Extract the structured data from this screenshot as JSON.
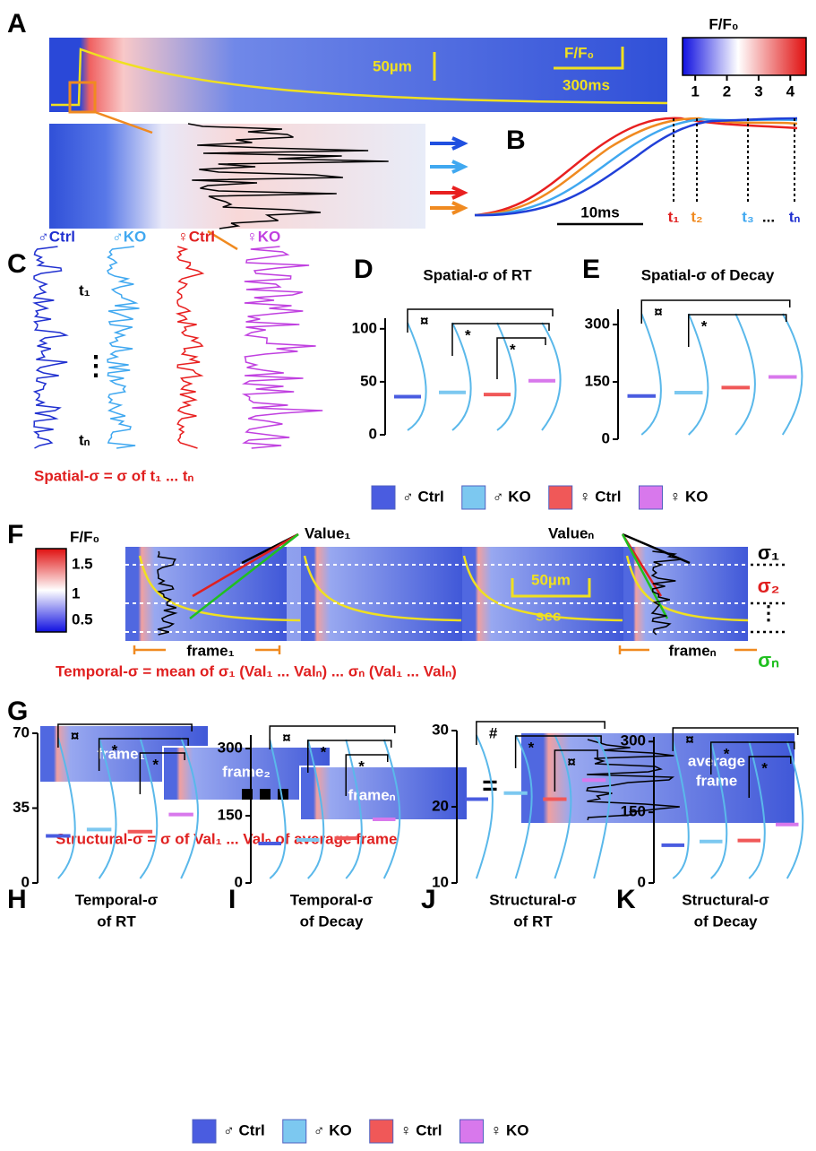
{
  "panel_labels": [
    "A",
    "B",
    "C",
    "D",
    "E",
    "F",
    "G",
    "H",
    "I",
    "J",
    "K"
  ],
  "panel_a": {
    "colorbar_title": "F/F₀",
    "colorbar_ticks": [
      1,
      2,
      3,
      4
    ],
    "scale_length": "50µm",
    "scale_amplitude": "F/F₀",
    "scale_time": "300ms"
  },
  "panel_b": {
    "scale_time": "10ms",
    "time_labels": [
      "t₁",
      "t₂",
      "t₃",
      "...",
      "tₙ"
    ]
  },
  "panel_c": {
    "trace_labels": [
      "♂Ctrl",
      "♂KO",
      "♀Ctrl",
      "♀KO"
    ],
    "first_label": "t₁",
    "ellipsis": "⋮",
    "last_label": "tₙ",
    "formula": "Spatial-σ = σ of t₁ ... tₙ"
  },
  "panel_f": {
    "colorbar_title": "F/F₀",
    "colorbar_ticks": [
      "1.5",
      "1",
      "0.5"
    ],
    "value_first": "Value₁",
    "value_last": "Valueₙ",
    "scale_length": "50µm",
    "scale_time": "sec",
    "sigma_labels": [
      "σ₁",
      "σ₂",
      "⋮",
      "σₙ"
    ],
    "frame_first": "frame₁",
    "frame_last": "frameₙ",
    "formula": "Temporal-σ = mean of σ₁ (Val₁ ... Valₙ) ... σₙ (Val₁ ... Valₙ)"
  },
  "panel_g": {
    "frames": [
      "frame₁",
      "frame₂",
      "frameₙ"
    ],
    "equals": "=",
    "average": [
      "average",
      "frame"
    ],
    "formula": "Structural-σ =  σ of Val₁ ... Valₙ of average frame"
  },
  "legends": [
    [
      {
        "name": "♂ Ctrl",
        "color": "#4a5ce0"
      },
      {
        "name": "♂ KO",
        "color": "#7cc8f0"
      },
      {
        "name": "♀ Ctrl",
        "color": "#f05858"
      },
      {
        "name": "♀ KO",
        "color": "#d878ec"
      }
    ],
    [
      {
        "name": "♂ Ctrl",
        "color": "#4a5ce0"
      },
      {
        "name": "♂ KO",
        "color": "#7cc8f0"
      },
      {
        "name": "♀ Ctrl",
        "color": "#f05858"
      },
      {
        "name": "♀ KO",
        "color": "#d878ec"
      }
    ]
  ],
  "chart_data": [
    {
      "type": "mean",
      "title": [
        "Spatial-σ of RT"
      ],
      "values": [
        36,
        40,
        38,
        51
      ],
      "ylim": [
        0,
        110
      ],
      "yticks": [
        0,
        50,
        100
      ],
      "brackets": [
        "¤",
        "*",
        "*"
      ]
    },
    {
      "type": "mean",
      "title": [
        "Spatial-σ of Decay"
      ],
      "values": [
        113,
        122,
        135,
        163
      ],
      "ylim": [
        0,
        340
      ],
      "yticks": [
        0,
        150,
        300
      ],
      "brackets": [
        "¤",
        "*"
      ]
    },
    {
      "type": "mean",
      "title": [
        "Temporal-σ",
        "of RT"
      ],
      "values": [
        22,
        25,
        24,
        32
      ],
      "ylim": [
        0,
        70
      ],
      "yticks": [
        0,
        35,
        70
      ],
      "brackets": [
        "¤",
        "*",
        "*"
      ]
    },
    {
      "type": "mean",
      "title": [
        "Temporal-σ",
        "of Decay"
      ],
      "values": [
        88,
        96,
        100,
        142
      ],
      "ylim": [
        0,
        330
      ],
      "yticks": [
        0,
        150,
        300
      ],
      "brackets": [
        "¤",
        "*",
        "*"
      ]
    },
    {
      "type": "mean",
      "title": [
        "Structural-σ",
        "of RT"
      ],
      "values": [
        21,
        21.8,
        21,
        23.5
      ],
      "ylim": [
        10,
        30
      ],
      "yticks": [
        10,
        20,
        30
      ],
      "brackets": [
        "#",
        "*",
        "¤"
      ]
    },
    {
      "type": "mean",
      "title": [
        "Structural-σ",
        "of Decay"
      ],
      "values": [
        80,
        88,
        90,
        124
      ],
      "ylim": [
        0,
        310
      ],
      "yticks": [
        0,
        150,
        300
      ],
      "brackets": [
        "¤",
        "*",
        "*"
      ]
    }
  ]
}
